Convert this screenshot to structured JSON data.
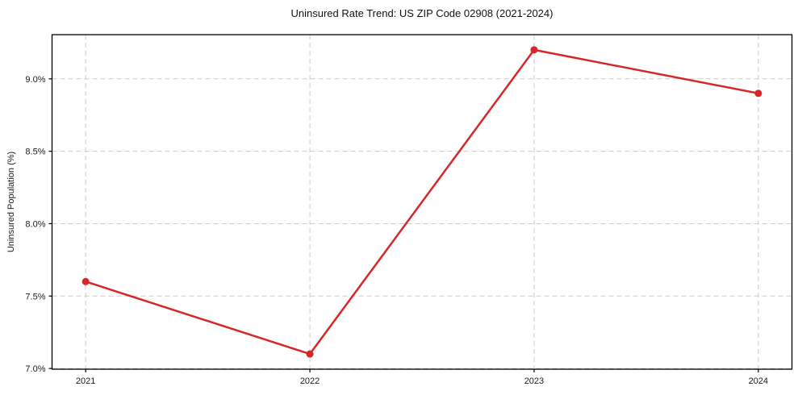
{
  "chart_data": {
    "type": "line",
    "title": "Uninsured Rate Trend: US ZIP Code 02908 (2021-2024)",
    "xlabel": "",
    "ylabel": "Uninsured Population (%)",
    "x": [
      2021,
      2022,
      2023,
      2024
    ],
    "series": [
      {
        "name": "Uninsured Population (%)",
        "values": [
          7.6,
          7.1,
          9.2,
          8.9
        ],
        "color": "#d62728",
        "marker": "circle",
        "line_width": 2.5,
        "marker_radius": 4.5
      }
    ],
    "xlim": [
      2020.85,
      2024.15
    ],
    "ylim": [
      6.995,
      9.305
    ],
    "xticks": [
      {
        "value": 2021,
        "label": "2021"
      },
      {
        "value": 2022,
        "label": "2022"
      },
      {
        "value": 2023,
        "label": "2023"
      },
      {
        "value": 2024,
        "label": "2024"
      }
    ],
    "yticks": [
      {
        "value": 7.0,
        "label": "7.0%"
      },
      {
        "value": 7.5,
        "label": "7.5%"
      },
      {
        "value": 8.0,
        "label": "8.0%"
      },
      {
        "value": 8.5,
        "label": "8.5%"
      },
      {
        "value": 9.0,
        "label": "9.0%"
      }
    ],
    "grid": true,
    "grid_style": "dashed",
    "legend": "none",
    "colors": {
      "grid": "#cccccc",
      "spine": "#000000",
      "tick_text": "#1a1a1a",
      "title_text": "#111111",
      "background": "#ffffff"
    }
  }
}
